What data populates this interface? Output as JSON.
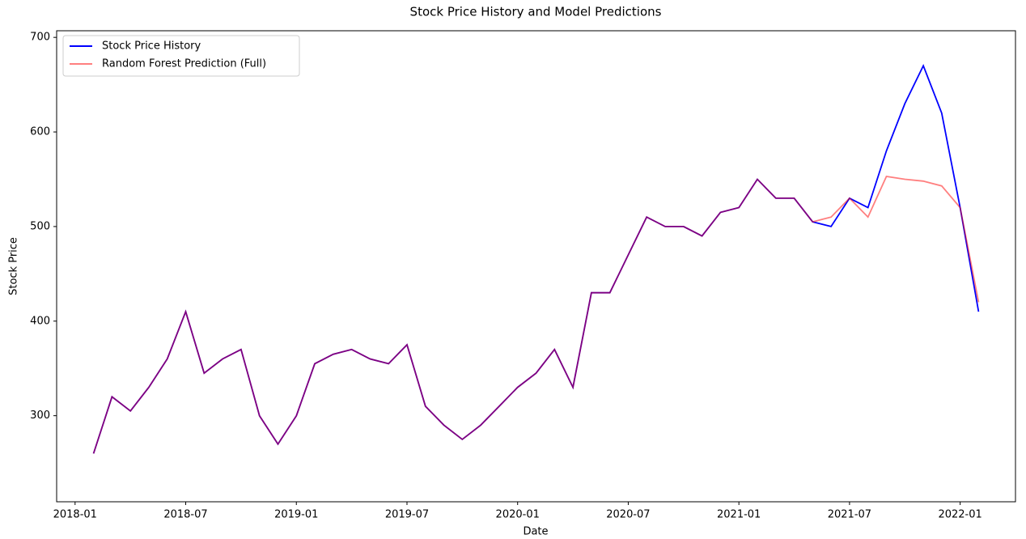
{
  "chart_data": {
    "type": "line",
    "title": "Stock Price History and Model Predictions",
    "x_label": "Date",
    "y_label": "Stock Price",
    "x": [
      "2018-02",
      "2018-03",
      "2018-04",
      "2018-05",
      "2018-06",
      "2018-07",
      "2018-08",
      "2018-09",
      "2018-10",
      "2018-11",
      "2018-12",
      "2019-01",
      "2019-02",
      "2019-03",
      "2019-04",
      "2019-05",
      "2019-06",
      "2019-07",
      "2019-08",
      "2019-09",
      "2019-10",
      "2019-11",
      "2019-12",
      "2020-01",
      "2020-02",
      "2020-03",
      "2020-04",
      "2020-05",
      "2020-06",
      "2020-07",
      "2020-08",
      "2020-09",
      "2020-10",
      "2020-11",
      "2020-12",
      "2021-01",
      "2021-02",
      "2021-03",
      "2021-04",
      "2021-05",
      "2021-06",
      "2021-07",
      "2021-08",
      "2021-09",
      "2021-10",
      "2021-11",
      "2021-12",
      "2022-01",
      "2022-02"
    ],
    "series": [
      {
        "name": "Stock Price History",
        "color": "#0000ff",
        "alpha": 1,
        "values": [
          260,
          320,
          305,
          330,
          360,
          410,
          345,
          360,
          370,
          300,
          270,
          300,
          355,
          365,
          370,
          360,
          355,
          375,
          310,
          290,
          275,
          290,
          310,
          330,
          345,
          370,
          330,
          430,
          430,
          470,
          510,
          500,
          500,
          490,
          515,
          520,
          550,
          530,
          530,
          505,
          500,
          530,
          520,
          580,
          630,
          670,
          620,
          520,
          410
        ]
      },
      {
        "name": "Random Forest Prediction (Full)",
        "color": "#ff0000",
        "alpha": 0.5,
        "values": [
          260,
          320,
          305,
          330,
          360,
          410,
          345,
          360,
          370,
          300,
          270,
          300,
          355,
          365,
          370,
          360,
          355,
          375,
          310,
          290,
          275,
          290,
          310,
          330,
          345,
          370,
          330,
          430,
          430,
          470,
          510,
          500,
          500,
          490,
          515,
          520,
          550,
          530,
          530,
          505,
          510,
          530,
          510,
          553,
          550,
          548,
          543,
          520,
          420
        ]
      }
    ],
    "xlim": [
      "2017-12",
      "2022-04"
    ],
    "xticks": [
      "2018-01",
      "2018-07",
      "2019-01",
      "2019-07",
      "2020-01",
      "2020-07",
      "2021-01",
      "2021-07",
      "2022-01"
    ],
    "ylim": [
      209,
      707
    ],
    "yticks": [
      300,
      400,
      500,
      600,
      700
    ],
    "grid": false,
    "legend": "upper left"
  }
}
